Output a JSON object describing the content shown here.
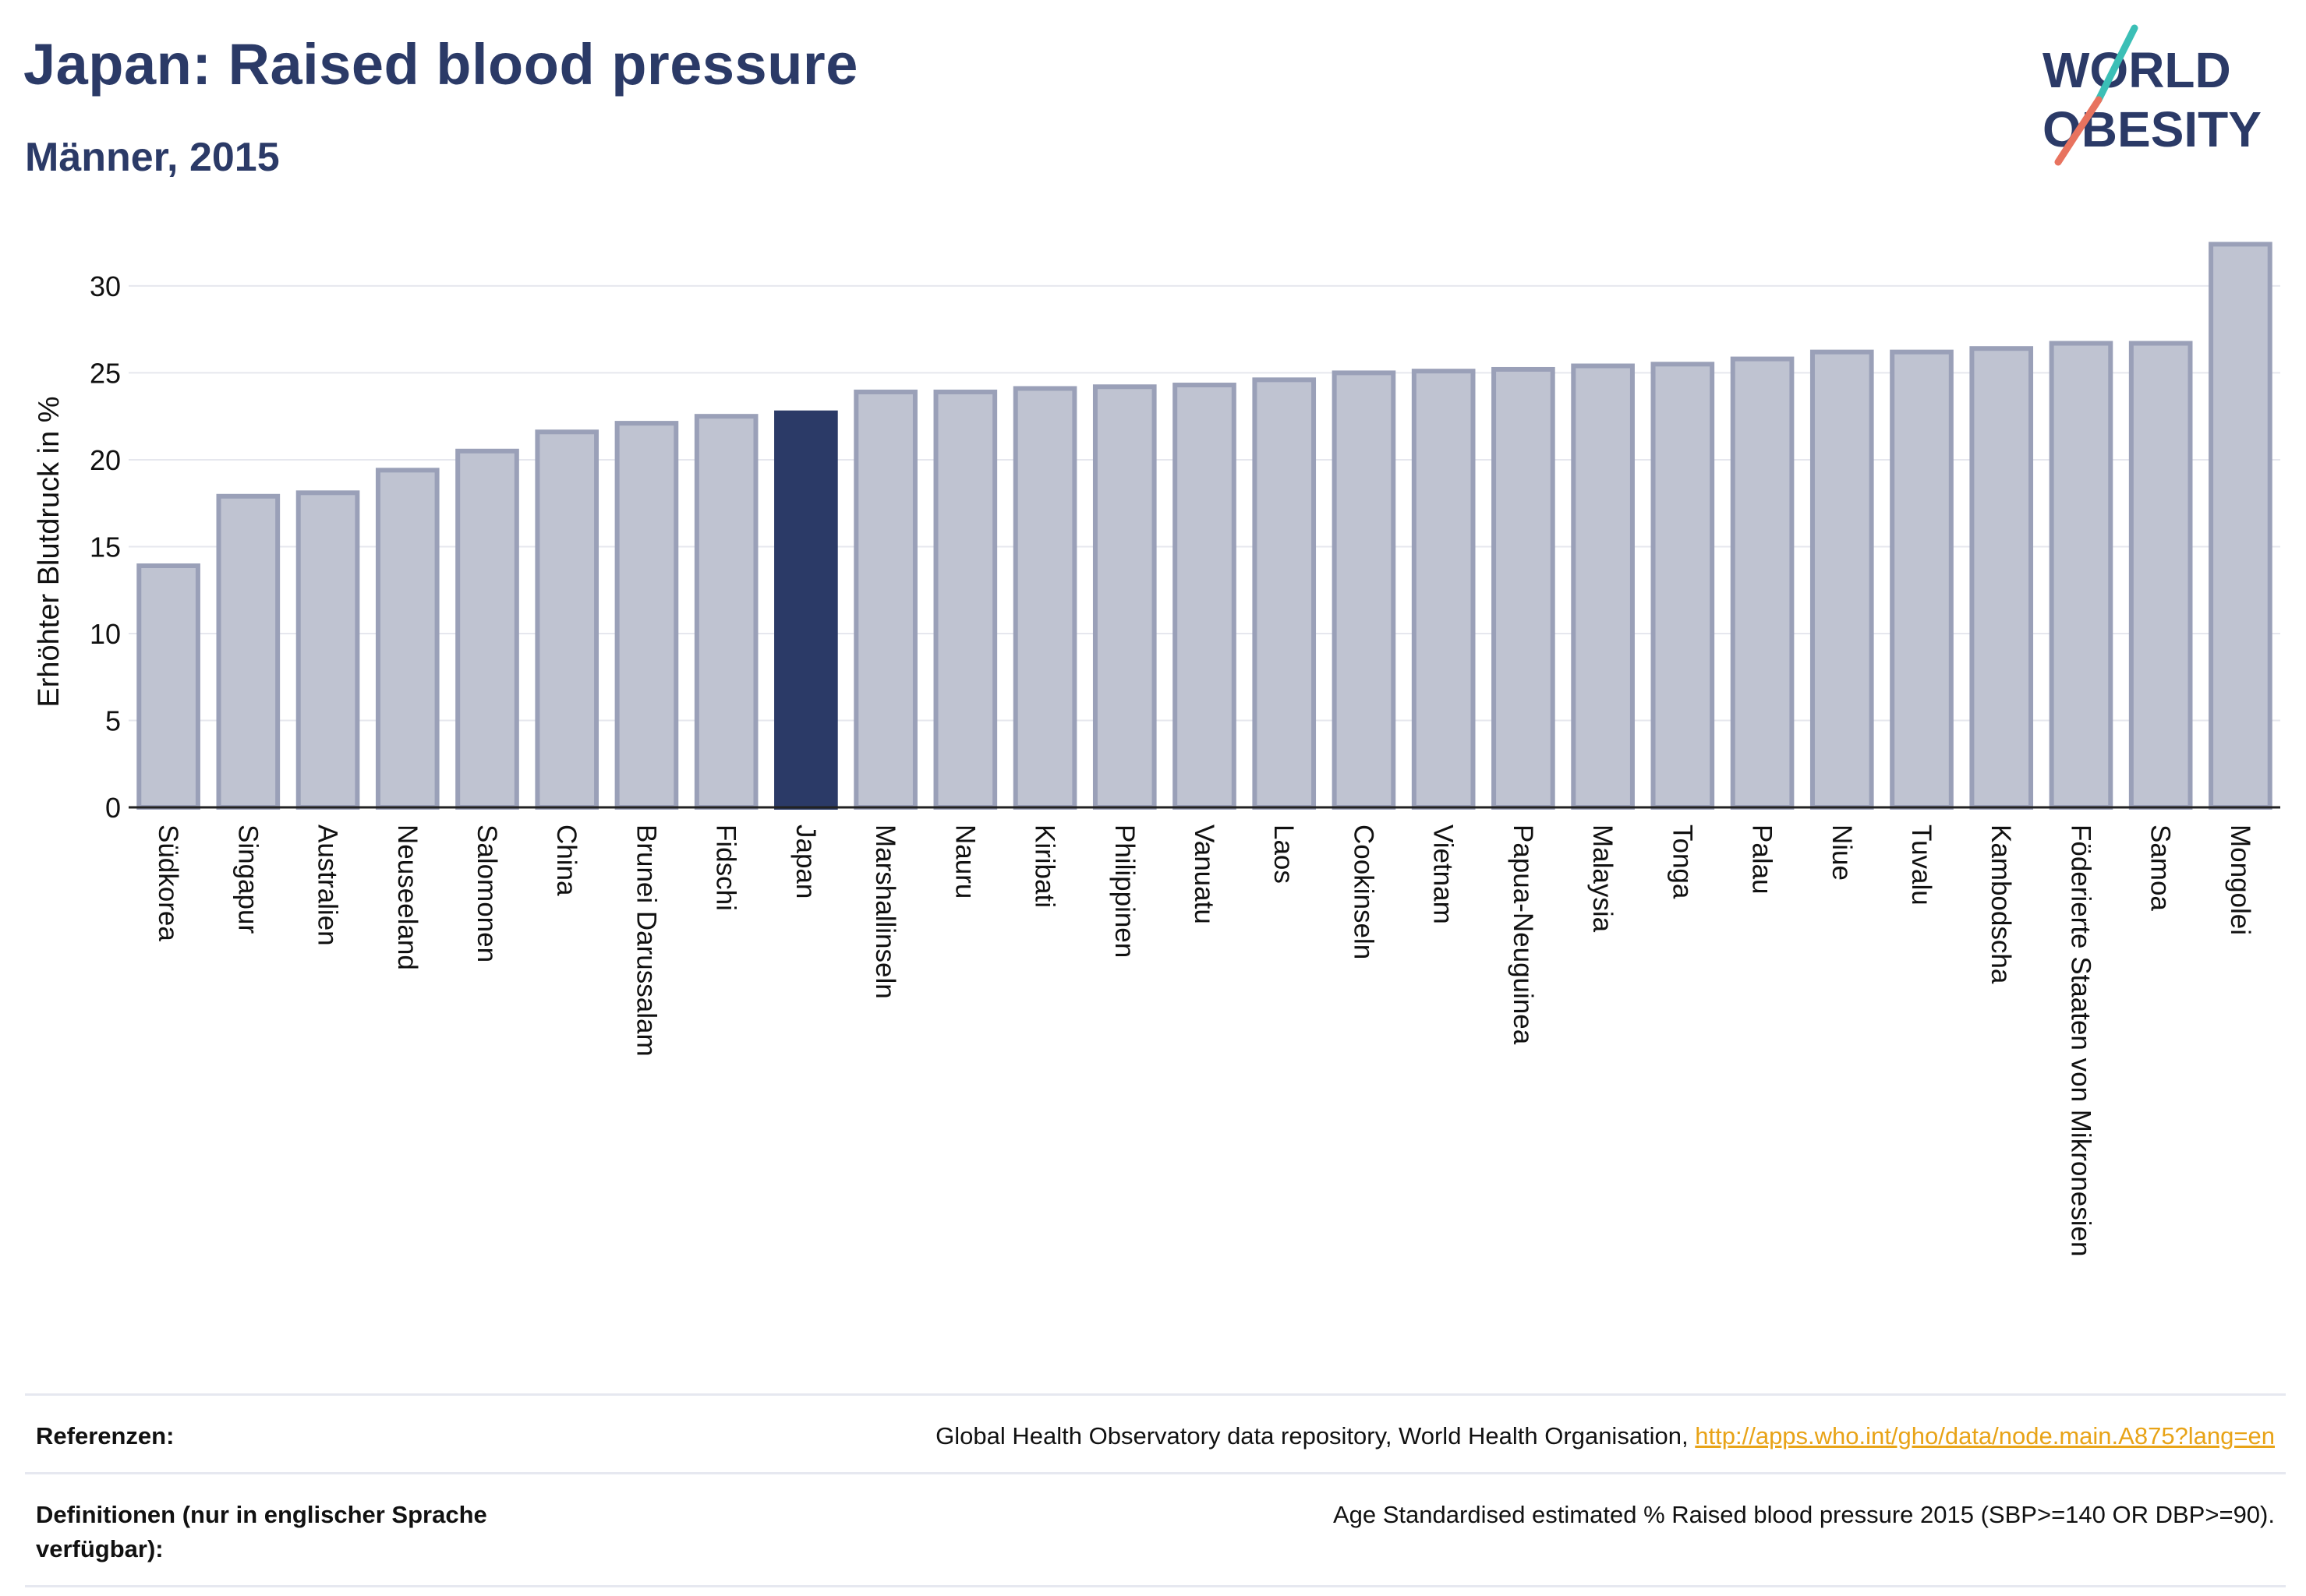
{
  "header": {
    "title": "Japan: Raised blood pressure",
    "subtitle": "Männer, 2015"
  },
  "logo": {
    "line1": "WORLD",
    "line2": "OBESITY",
    "colors": {
      "text": "#2b3a67",
      "slash_top": "#3bbfb6",
      "slash_bottom": "#e8735f"
    }
  },
  "chart_data": {
    "type": "bar",
    "ylabel": "Erhöhter Blutdruck in %",
    "ylim": [
      0,
      33
    ],
    "yticks": [
      0,
      5,
      10,
      15,
      20,
      25,
      30
    ],
    "grid": true,
    "highlight": "Japan",
    "colors": {
      "bar": "#bfc3d1",
      "bar_edge": "#9aa0b8",
      "highlight": "#2b3a67"
    },
    "categories": [
      "Südkorea",
      "Singapur",
      "Australien",
      "Neuseeland",
      "Salomonen",
      "China",
      "Brunei Darussalam",
      "Fidschi",
      "Japan",
      "Marshallinseln",
      "Nauru",
      "Kiribati",
      "Philippinen",
      "Vanuatu",
      "Laos",
      "Cookinseln",
      "Vietnam",
      "Papua-Neuguinea",
      "Malaysia",
      "Tonga",
      "Palau",
      "Niue",
      "Tuvalu",
      "Kambodscha",
      "Föderierte Staaten von Mikronesien",
      "Samoa",
      "Mongolei"
    ],
    "values": [
      13.9,
      17.9,
      18.1,
      19.4,
      20.5,
      21.6,
      22.1,
      22.5,
      22.7,
      23.9,
      23.9,
      24.1,
      24.2,
      24.3,
      24.6,
      25.0,
      25.1,
      25.2,
      25.4,
      25.5,
      25.8,
      26.2,
      26.2,
      26.4,
      26.7,
      26.7,
      32.4
    ]
  },
  "references": {
    "ref_label": "Referenzen:",
    "ref_text": "Global Health Observatory data repository, World Health Organisation,",
    "ref_link": "http://apps.who.int/gho/data/node.main.A875?lang=en",
    "def_label": "Definitionen (nur in englischer Sprache verfügbar):",
    "def_text": "Age Standardised estimated % Raised blood pressure 2015 (SBP>=140 OR DBP>=90)."
  }
}
